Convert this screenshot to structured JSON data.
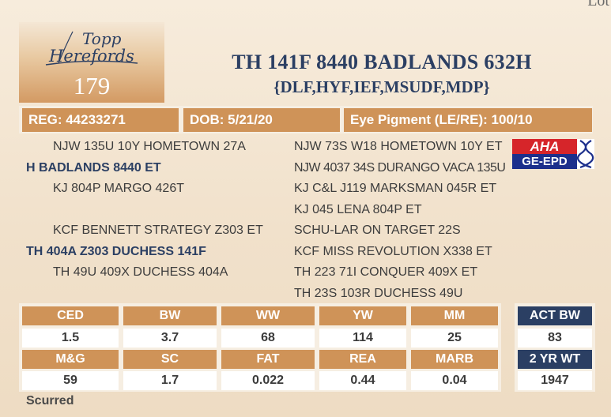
{
  "corner_text": "Lot",
  "logo": {
    "line1": "Topp",
    "line2": "Herefords"
  },
  "lot_number": "179",
  "animal_name": "TH 141F 8440 BADLANDS 632H",
  "genetic_status": "{DLF,HYF,IEF,MSUDF,MDP}",
  "info": {
    "reg": "REG: 44233271",
    "dob": "DOB: 5/21/20",
    "eye_pigment": "Eye Pigment (LE/RE): 100/10"
  },
  "pedigree_left": [
    "NJW 135U 10Y HOMETOWN 27A",
    "H BADLANDS 8440 ET",
    "KJ 804P MARGO 426T",
    "KCF BENNETT STRATEGY Z303 ET",
    "TH 404A Z303 DUCHESS 141F",
    "TH 49U 409X DUCHESS 404A"
  ],
  "pedigree_right": [
    "NJW 73S W18 HOMETOWN 10Y ET",
    "NJW 4037 34S DURANGO VACA 135U",
    "KJ C&L J119 MARKSMAN 045R ET",
    "KJ 045 LENA 804P ET",
    "SCHU-LAR ON TARGET 22S",
    "KCF MISS REVOLUTION X338 ET",
    "TH 223 71I CONQUER 409X ET",
    "TH 23S 103R DUCHESS 49U"
  ],
  "badge": {
    "top": "AHA",
    "bottom": "GE-EPD"
  },
  "epd_row1": {
    "headers": [
      "CED",
      "BW",
      "WW",
      "YW",
      "MM"
    ],
    "values": [
      "1.5",
      "3.7",
      "68",
      "114",
      "25"
    ]
  },
  "epd_row2": {
    "headers": [
      "M&G",
      "SC",
      "FAT",
      "REA",
      "MARB"
    ],
    "values": [
      "59",
      "1.7",
      "0.022",
      "0.44",
      "0.04"
    ]
  },
  "actuals": {
    "bw_label": "ACT BW",
    "bw_value": "83",
    "yr_label": "2 YR WT",
    "yr_value": "1947"
  },
  "footnote": "Scurred",
  "colors": {
    "accent": "#cf9358",
    "navy": "#2b3f63",
    "panel": "#f6eee2"
  }
}
